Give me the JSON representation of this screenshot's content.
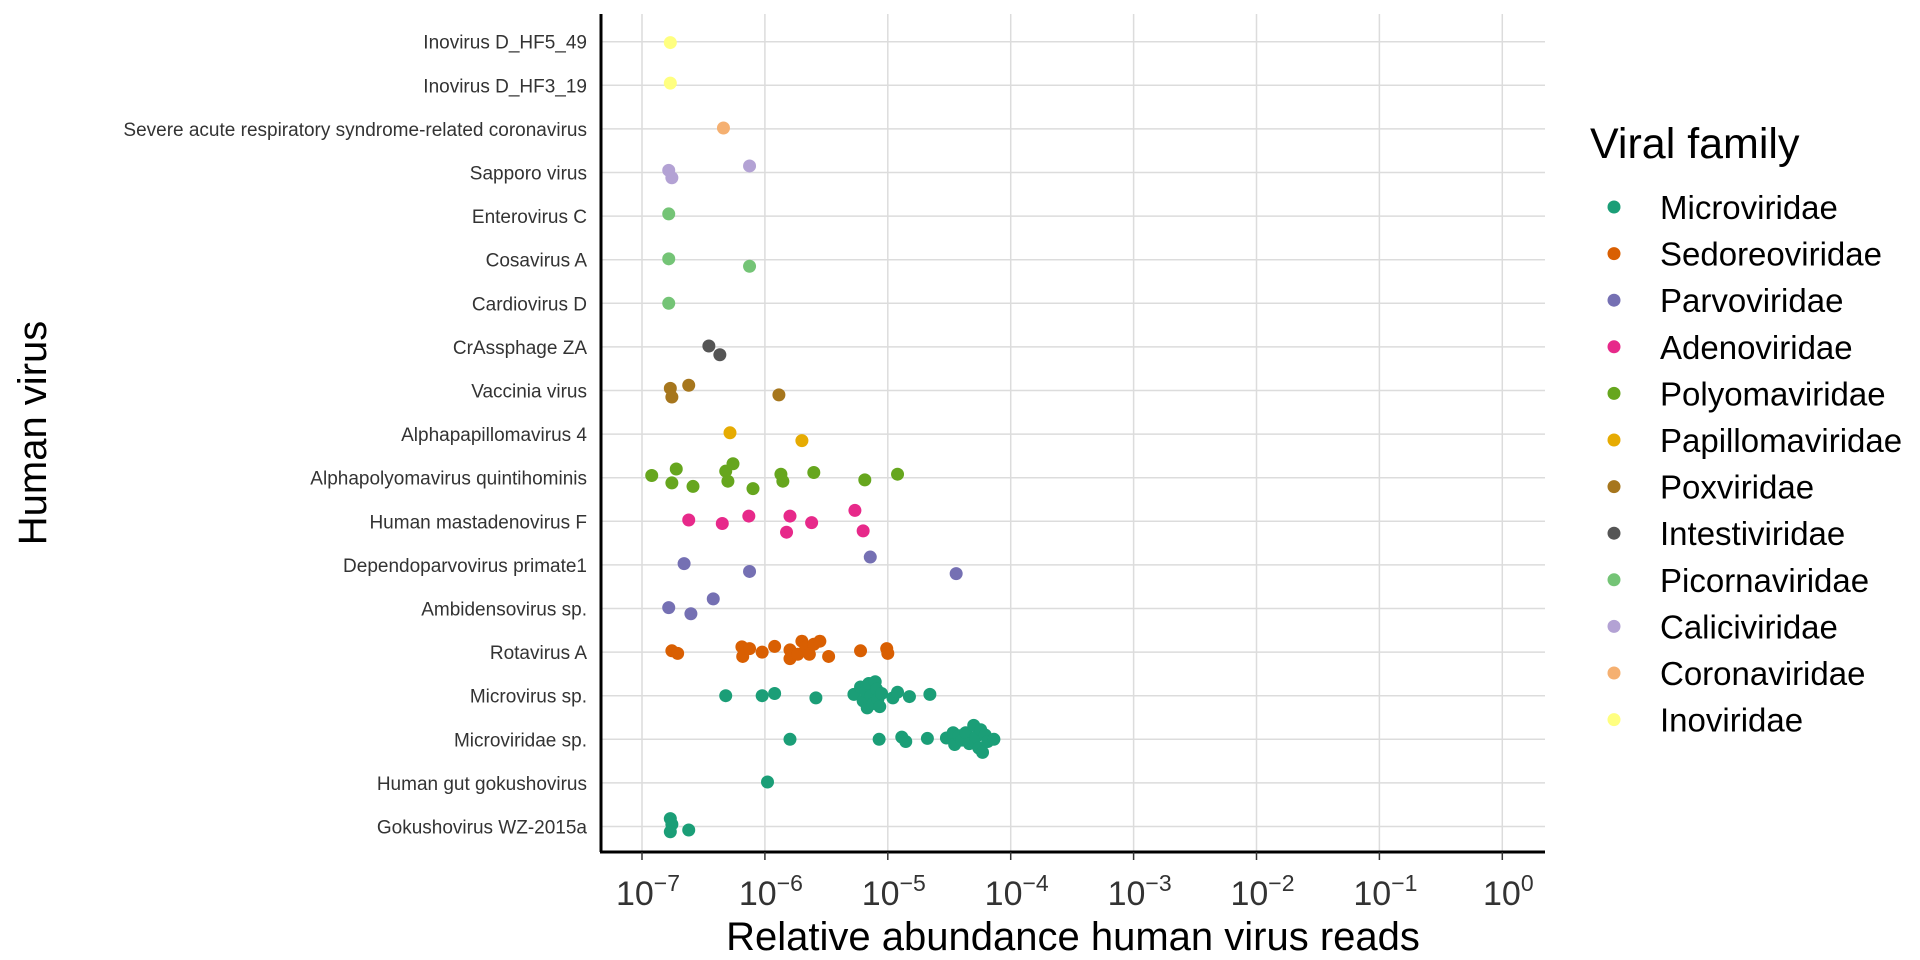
{
  "chart_data": {
    "type": "scatter",
    "xlabel": "Relative abundance human virus reads",
    "ylabel": "Human virus",
    "x_scale": "log10",
    "xlim": [
      5e-08,
      2
    ],
    "x_ticks": [
      {
        "value": 1e-07,
        "base": "10",
        "exp": "−7"
      },
      {
        "value": 1e-06,
        "base": "10",
        "exp": "−6"
      },
      {
        "value": 1e-05,
        "base": "10",
        "exp": "−5"
      },
      {
        "value": 0.0001,
        "base": "10",
        "exp": "−4"
      },
      {
        "value": 0.001,
        "base": "10",
        "exp": "−3"
      },
      {
        "value": 0.01,
        "base": "10",
        "exp": "−2"
      },
      {
        "value": 0.1,
        "base": "10",
        "exp": "−1"
      },
      {
        "value": 1,
        "base": "10",
        "exp": "0"
      }
    ],
    "categories": [
      "Gokushovirus WZ-2015a",
      "Human gut gokushovirus",
      "Microviridae sp.",
      "Microvirus sp.",
      "Rotavirus A",
      "Ambidensovirus sp.",
      "Dependoparvovirus primate1",
      "Human mastadenovirus F",
      "Alphapolyomavirus quintihominis",
      "Alphapapillomavirus 4",
      "Vaccinia virus",
      "CrAssphage ZA",
      "Cardiovirus D",
      "Cosavirus A",
      "Enterovirus C",
      "Sapporo virus",
      "Severe acute respiratory syndrome-related coronavirus",
      "Inovirus D_HF3_19",
      "Inovirus D_HF5_49"
    ],
    "legend_title": "Viral family",
    "legend_position": "right",
    "grid": true,
    "series": [
      {
        "name": "Microviridae",
        "color": "#1b9e77",
        "points": [
          [
            1.7e-07,
            "Gokushovirus WZ-2015a",
            0.18
          ],
          [
            1.75e-07,
            "Gokushovirus WZ-2015a",
            0.05
          ],
          [
            1.7e-07,
            "Gokushovirus WZ-2015a",
            -0.12
          ],
          [
            2.4e-07,
            "Gokushovirus WZ-2015a",
            -0.08
          ],
          [
            1.05e-06,
            "Human gut gokushovirus",
            0.02
          ],
          [
            1.6e-06,
            "Microviridae sp.",
            0.0
          ],
          [
            8.5e-06,
            "Microviridae sp.",
            0.0
          ],
          [
            1.3e-05,
            "Microviridae sp.",
            0.05
          ],
          [
            1.4e-05,
            "Microviridae sp.",
            -0.05
          ],
          [
            2.1e-05,
            "Microviridae sp.",
            0.02
          ],
          [
            3e-05,
            "Microviridae sp.",
            0.03
          ],
          [
            3.4e-05,
            "Microviridae sp.",
            0.15
          ],
          [
            3.5e-05,
            "Microviridae sp.",
            -0.12
          ],
          [
            3.8e-05,
            "Microviridae sp.",
            0.08
          ],
          [
            4e-05,
            "Microviridae sp.",
            -0.02
          ],
          [
            4.3e-05,
            "Microviridae sp.",
            0.15
          ],
          [
            4.6e-05,
            "Microviridae sp.",
            -0.1
          ],
          [
            5e-05,
            "Microviridae sp.",
            0.32
          ],
          [
            5.2e-05,
            "Microviridae sp.",
            0.05
          ],
          [
            5.5e-05,
            "Microviridae sp.",
            -0.2
          ],
          [
            5.7e-05,
            "Microviridae sp.",
            0.22
          ],
          [
            5.9e-05,
            "Microviridae sp.",
            -0.3
          ],
          [
            6.2e-05,
            "Microviridae sp.",
            0.1
          ],
          [
            6.5e-05,
            "Microviridae sp.",
            -0.05
          ],
          [
            7.3e-05,
            "Microviridae sp.",
            0.0
          ],
          [
            4.8e-07,
            "Microvirus sp.",
            0.0
          ],
          [
            9.5e-07,
            "Microvirus sp.",
            0.0
          ],
          [
            1.2e-06,
            "Microvirus sp.",
            0.05
          ],
          [
            2.6e-06,
            "Microvirus sp.",
            -0.05
          ],
          [
            5.3e-06,
            "Microvirus sp.",
            0.03
          ],
          [
            6e-06,
            "Microvirus sp.",
            0.2
          ],
          [
            6.3e-06,
            "Microvirus sp.",
            -0.12
          ],
          [
            6.6e-06,
            "Microvirus sp.",
            0.1
          ],
          [
            6.8e-06,
            "Microvirus sp.",
            -0.28
          ],
          [
            7e-06,
            "Microvirus sp.",
            0.28
          ],
          [
            7.3e-06,
            "Microvirus sp.",
            0.0
          ],
          [
            7.6e-06,
            "Microvirus sp.",
            -0.18
          ],
          [
            7.9e-06,
            "Microvirus sp.",
            0.32
          ],
          [
            8.1e-06,
            "Microvirus sp.",
            0.15
          ],
          [
            8.3e-06,
            "Microvirus sp.",
            -0.08
          ],
          [
            8.6e-06,
            "Microvirus sp.",
            -0.25
          ],
          [
            8.9e-06,
            "Microvirus sp.",
            0.05
          ],
          [
            1.1e-05,
            "Microvirus sp.",
            -0.05
          ],
          [
            1.2e-05,
            "Microvirus sp.",
            0.08
          ],
          [
            1.5e-05,
            "Microvirus sp.",
            -0.02
          ],
          [
            2.2e-05,
            "Microvirus sp.",
            0.03
          ]
        ]
      },
      {
        "name": "Sedoreoviridae",
        "color": "#d95f02",
        "points": [
          [
            1.75e-07,
            "Rotavirus A",
            0.03
          ],
          [
            1.95e-07,
            "Rotavirus A",
            -0.03
          ],
          [
            6.5e-07,
            "Rotavirus A",
            0.12
          ],
          [
            6.6e-07,
            "Rotavirus A",
            -0.1
          ],
          [
            7.5e-07,
            "Rotavirus A",
            0.08
          ],
          [
            9.5e-07,
            "Rotavirus A",
            0.0
          ],
          [
            1.2e-06,
            "Rotavirus A",
            0.13
          ],
          [
            1.6e-06,
            "Rotavirus A",
            0.05
          ],
          [
            1.6e-06,
            "Rotavirus A",
            -0.15
          ],
          [
            1.85e-06,
            "Rotavirus A",
            -0.05
          ],
          [
            2e-06,
            "Rotavirus A",
            0.25
          ],
          [
            2.15e-06,
            "Rotavirus A",
            0.12
          ],
          [
            2.3e-06,
            "Rotavirus A",
            -0.05
          ],
          [
            2.5e-06,
            "Rotavirus A",
            0.18
          ],
          [
            2.8e-06,
            "Rotavirus A",
            0.25
          ],
          [
            3.3e-06,
            "Rotavirus A",
            -0.1
          ],
          [
            6e-06,
            "Rotavirus A",
            0.03
          ],
          [
            9.8e-06,
            "Rotavirus A",
            0.08
          ],
          [
            1e-05,
            "Rotavirus A",
            -0.03
          ]
        ]
      },
      {
        "name": "Parvoviridae",
        "color": "#7570b3",
        "points": [
          [
            1.65e-07,
            "Ambidensovirus sp.",
            0.02
          ],
          [
            2.5e-07,
            "Ambidensovirus sp.",
            -0.12
          ],
          [
            3.8e-07,
            "Ambidensovirus sp.",
            0.22
          ],
          [
            2.2e-07,
            "Dependoparvovirus primate1",
            0.03
          ],
          [
            7.5e-07,
            "Dependoparvovirus primate1",
            -0.15
          ],
          [
            7.2e-06,
            "Dependoparvovirus primate1",
            0.18
          ],
          [
            3.6e-05,
            "Dependoparvovirus primate1",
            -0.2
          ]
        ]
      },
      {
        "name": "Adenoviridae",
        "color": "#e7298a",
        "points": [
          [
            2.4e-07,
            "Human mastadenovirus F",
            0.03
          ],
          [
            4.5e-07,
            "Human mastadenovirus F",
            -0.05
          ],
          [
            7.4e-07,
            "Human mastadenovirus F",
            0.12
          ],
          [
            1.5e-06,
            "Human mastadenovirus F",
            -0.25
          ],
          [
            1.6e-06,
            "Human mastadenovirus F",
            0.12
          ],
          [
            2.4e-06,
            "Human mastadenovirus F",
            -0.03
          ],
          [
            5.4e-06,
            "Human mastadenovirus F",
            0.25
          ],
          [
            6.3e-06,
            "Human mastadenovirus F",
            -0.22
          ]
        ]
      },
      {
        "name": "Polyomaviridae",
        "color": "#66a61e",
        "points": [
          [
            1.2e-07,
            "Alphapolyomavirus quintihominis",
            0.05
          ],
          [
            1.75e-07,
            "Alphapolyomavirus quintihominis",
            -0.12
          ],
          [
            1.9e-07,
            "Alphapolyomavirus quintihominis",
            0.2
          ],
          [
            2.6e-07,
            "Alphapolyomavirus quintihominis",
            -0.2
          ],
          [
            4.8e-07,
            "Alphapolyomavirus quintihominis",
            0.15
          ],
          [
            5e-07,
            "Alphapolyomavirus quintihominis",
            -0.08
          ],
          [
            5.5e-07,
            "Alphapolyomavirus quintihominis",
            0.32
          ],
          [
            8e-07,
            "Alphapolyomavirus quintihominis",
            -0.25
          ],
          [
            1.35e-06,
            "Alphapolyomavirus quintihominis",
            0.08
          ],
          [
            1.4e-06,
            "Alphapolyomavirus quintihominis",
            -0.08
          ],
          [
            2.5e-06,
            "Alphapolyomavirus quintihominis",
            0.12
          ],
          [
            6.5e-06,
            "Alphapolyomavirus quintihominis",
            -0.05
          ],
          [
            1.2e-05,
            "Alphapolyomavirus quintihominis",
            0.08
          ]
        ]
      },
      {
        "name": "Papillomaviridae",
        "color": "#e6ab02",
        "points": [
          [
            5.2e-07,
            "Alphapapillomavirus 4",
            0.03
          ],
          [
            2e-06,
            "Alphapapillomavirus 4",
            -0.15
          ]
        ]
      },
      {
        "name": "Poxviridae",
        "color": "#a6761d",
        "points": [
          [
            1.7e-07,
            "Vaccinia virus",
            0.05
          ],
          [
            1.75e-07,
            "Vaccinia virus",
            -0.15
          ],
          [
            2.4e-07,
            "Vaccinia virus",
            0.12
          ],
          [
            1.3e-06,
            "Vaccinia virus",
            -0.1
          ]
        ]
      },
      {
        "name": "Intestiviridae",
        "color": "#555555",
        "points": [
          [
            3.5e-07,
            "CrAssphage ZA",
            0.02
          ],
          [
            4.3e-07,
            "CrAssphage ZA",
            -0.18
          ]
        ]
      },
      {
        "name": "Picornaviridae",
        "color": "#74c476",
        "points": [
          [
            1.65e-07,
            "Cardiovirus D",
            0.0
          ],
          [
            1.65e-07,
            "Cosavirus A",
            0.02
          ],
          [
            7.5e-07,
            "Cosavirus A",
            -0.15
          ],
          [
            1.65e-07,
            "Enterovirus C",
            0.05
          ]
        ]
      },
      {
        "name": "Caliciviridae",
        "color": "#b3a2d4",
        "points": [
          [
            1.65e-07,
            "Sapporo virus",
            0.05
          ],
          [
            1.75e-07,
            "Sapporo virus",
            -0.12
          ],
          [
            7.5e-07,
            "Sapporo virus",
            0.15
          ]
        ]
      },
      {
        "name": "Coronaviridae",
        "color": "#f5b071",
        "points": [
          [
            4.6e-07,
            "Severe acute respiratory syndrome-related coronavirus",
            0.02
          ]
        ]
      },
      {
        "name": "Inoviridae",
        "color": "#ffff80",
        "points": [
          [
            1.7e-07,
            "Inovirus D_HF3_19",
            0.05
          ],
          [
            1.7e-07,
            "Inovirus D_HF5_49",
            -0.02
          ]
        ]
      }
    ]
  }
}
